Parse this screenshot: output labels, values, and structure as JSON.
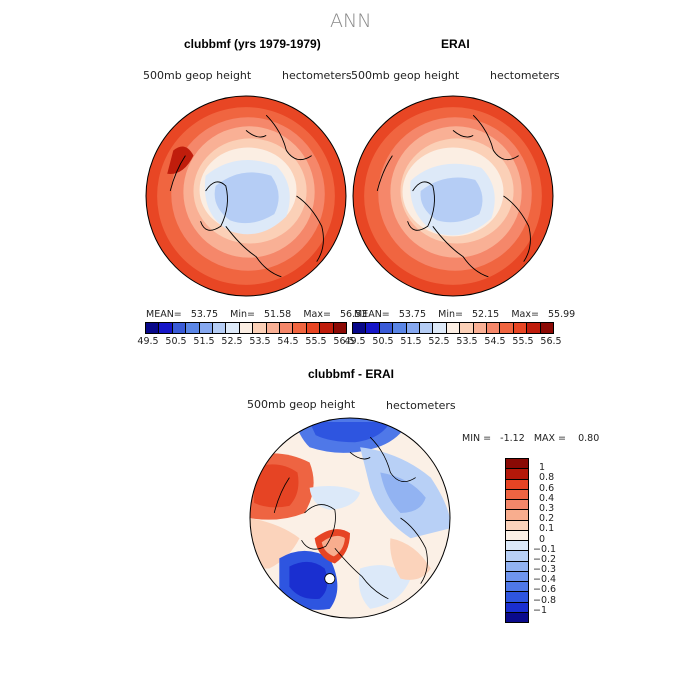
{
  "figure": {
    "title": "ANN",
    "variable": "500mb geop height",
    "units": "hectometers"
  },
  "colors": {
    "main": [
      "#08088a",
      "#1616c8",
      "#3a5bd7",
      "#5b86e6",
      "#86a8f0",
      "#b5cdf5",
      "#dde9f8",
      "#fbeee3",
      "#fbd0b7",
      "#f9b095",
      "#f5876a",
      "#f06540",
      "#e84624",
      "#c01d0c",
      "#8c0a05"
    ],
    "diff": [
      "#0a0a8c",
      "#1a2fd0",
      "#2e55e0",
      "#4f78e8",
      "#6f95ee",
      "#92b3f2",
      "#b8d0f6",
      "#dce9f9",
      "#fbf0e6",
      "#fbd3bb",
      "#f8ad8e",
      "#f3876a",
      "#ee6442",
      "#e64424",
      "#b4180a",
      "#8a0a05"
    ]
  },
  "panels": [
    {
      "id": "model",
      "title": "clubbmf (yrs 1979-1979)",
      "stats": {
        "mean_label": "MEAN=",
        "mean": "53.75",
        "min_label": "Min=",
        "min": "51.58",
        "max_label": "Max=",
        "max": "56.53"
      },
      "ticks": [
        "49.5",
        "50.5",
        "51.5",
        "52.5",
        "53.5",
        "54.5",
        "55.5",
        "56.5"
      ]
    },
    {
      "id": "obs",
      "title": "ERAI",
      "stats": {
        "mean_label": "MEAN=",
        "mean": "53.75",
        "min_label": "Min=",
        "min": "52.15",
        "max_label": "Max=",
        "max": "55.99"
      },
      "ticks": [
        "49.5",
        "50.5",
        "51.5",
        "52.5",
        "53.5",
        "54.5",
        "55.5",
        "56.5"
      ]
    }
  ],
  "diff": {
    "title": "clubbmf - ERAI",
    "min_label": "MIN =",
    "min": "-1.12",
    "max_label": "MAX =",
    "max": "0.80",
    "levels": [
      "1",
      "0.8",
      "0.6",
      "0.4",
      "0.3",
      "0.2",
      "0.1",
      "0",
      "−0.1",
      "−0.2",
      "−0.3",
      "−0.4",
      "−0.6",
      "−0.8",
      "−1"
    ]
  }
}
